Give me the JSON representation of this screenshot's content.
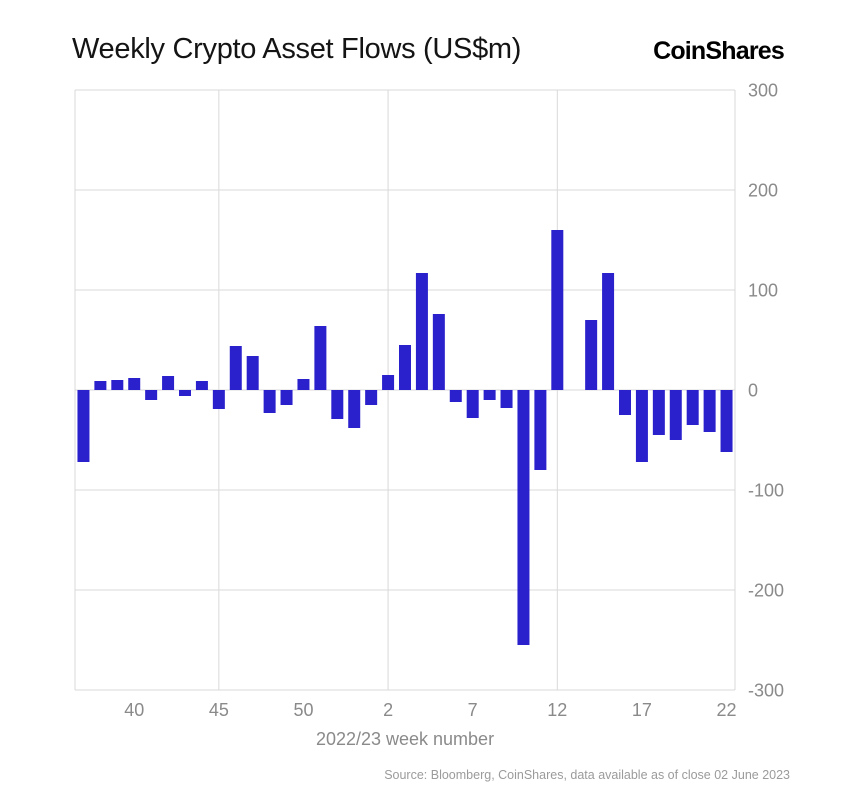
{
  "header": {
    "title": "Weekly Crypto Asset Flows (US$m)",
    "logo": "CoinShares"
  },
  "chart_data": {
    "type": "bar",
    "title": "Weekly Crypto Asset Flows (US$m)",
    "xlabel": "2022/23 week number",
    "ylabel": "",
    "ylim": [
      -300,
      300
    ],
    "yticks": [
      "300",
      "200",
      "100",
      "0",
      "-100",
      "-200",
      "-300"
    ],
    "ytick_values": [
      300,
      200,
      100,
      0,
      -100,
      -200,
      -300
    ],
    "x_tick_labels": [
      "40",
      "45",
      "50",
      "2",
      "7",
      "12",
      "17",
      "22"
    ],
    "vgrid_categories": [
      "45",
      "2",
      "12"
    ],
    "grid": true,
    "legend_position": "none",
    "bar_color": "#2b21cc",
    "grid_color": "#d9d9d9",
    "axis_text_color": "#8a8a8a",
    "categories": [
      "37",
      "38",
      "39",
      "40",
      "41",
      "42",
      "43",
      "44",
      "45",
      "46",
      "47",
      "48",
      "49",
      "50",
      "51",
      "52",
      "53",
      "1",
      "2",
      "3",
      "4",
      "5",
      "6",
      "7",
      "8",
      "9",
      "10",
      "11",
      "12",
      "13",
      "14",
      "15",
      "16",
      "17",
      "18",
      "19",
      "20",
      "21",
      "22"
    ],
    "values": [
      -72,
      9,
      10,
      12,
      -10,
      14,
      -6,
      9,
      -19,
      44,
      34,
      -23,
      -15,
      11,
      64,
      -29,
      -38,
      -15,
      15,
      45,
      117,
      76,
      -12,
      -28,
      -10,
      -18,
      -255,
      -80,
      160,
      0,
      70,
      117,
      -25,
      -72,
      -45,
      -50,
      -35,
      -42,
      -62
    ]
  },
  "footer": {
    "source": "Source: Bloomberg, CoinShares, data available as of close 02 June 2023"
  }
}
